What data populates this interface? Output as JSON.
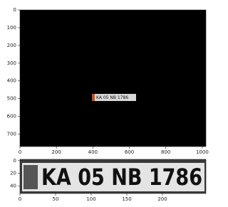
{
  "chart_data": [
    {
      "type": "image",
      "plate_text": "KA 05 NB 1786",
      "xlim": [
        0,
        1020
      ],
      "ylim": [
        770,
        0
      ],
      "xticks": [
        0,
        200,
        400,
        600,
        800,
        1000
      ],
      "yticks": [
        0,
        100,
        200,
        300,
        400,
        500,
        600,
        700
      ]
    },
    {
      "type": "image",
      "plate_text": "KA 05 NB 1786",
      "xlim": [
        0,
        261
      ],
      "ylim": [
        52,
        -2
      ],
      "xticks": [
        0,
        50,
        100,
        150,
        200
      ],
      "yticks": [
        0,
        20,
        40
      ]
    }
  ]
}
